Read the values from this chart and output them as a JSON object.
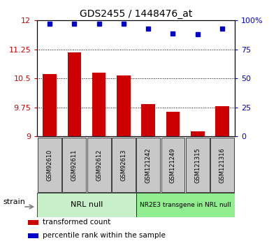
{
  "title": "GDS2455 / 1448476_at",
  "samples": [
    "GSM92610",
    "GSM92611",
    "GSM92612",
    "GSM92613",
    "GSM121242",
    "GSM121249",
    "GSM121315",
    "GSM121316"
  ],
  "bar_values": [
    10.62,
    11.18,
    10.65,
    10.58,
    9.83,
    9.63,
    9.12,
    9.78
  ],
  "dot_values": [
    97,
    97,
    97,
    97,
    93,
    89,
    88,
    93
  ],
  "bar_color": "#cc0000",
  "dot_color": "#0000cc",
  "ylim_left": [
    9,
    12
  ],
  "ylim_right": [
    0,
    100
  ],
  "yticks_left": [
    9,
    9.75,
    10.5,
    11.25,
    12
  ],
  "yticks_right": [
    0,
    25,
    50,
    75,
    100
  ],
  "ytick_labels_left": [
    "9",
    "9.75",
    "10.5",
    "11.25",
    "12"
  ],
  "ytick_labels_right": [
    "0",
    "25",
    "50",
    "75",
    "100%"
  ],
  "groups": [
    {
      "label": "NRL null",
      "start": 0,
      "end": 4,
      "color": "#c8f0c8"
    },
    {
      "label": "NR2E3 transgene in NRL null",
      "start": 4,
      "end": 8,
      "color": "#90ee90"
    }
  ],
  "strain_label": "strain",
  "legend": [
    {
      "label": "transformed count",
      "color": "#cc0000"
    },
    {
      "label": "percentile rank within the sample",
      "color": "#0000cc"
    }
  ],
  "background_color": "#ffffff",
  "tick_box_color": "#c8c8c8",
  "bar_width": 0.55
}
